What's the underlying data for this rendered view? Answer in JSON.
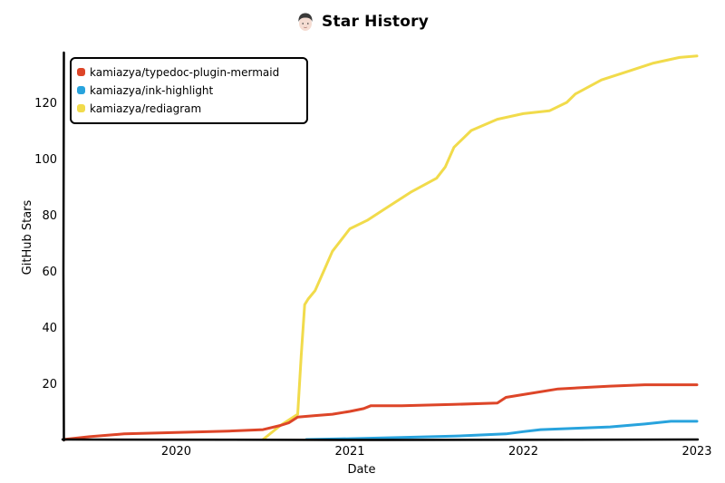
{
  "header": {
    "title": "Star History",
    "avatar_icon": "avatar-icon"
  },
  "chart_data": {
    "type": "line",
    "title": "Star History",
    "xlabel": "Date",
    "ylabel": "GitHub Stars",
    "x_ticks": [
      "2020",
      "2021",
      "2022",
      "2023"
    ],
    "y_ticks": [
      "20",
      "40",
      "60",
      "80",
      "100",
      "120"
    ],
    "xlim": [
      2019.35,
      2023.0
    ],
    "ylim": [
      0,
      137
    ],
    "grid": false,
    "legend_position": "top-left",
    "series": [
      {
        "name": "kamiazya/typedoc-plugin-mermaid",
        "color": "#dd4528",
        "x": [
          2019.35,
          2019.5,
          2019.7,
          2020.0,
          2020.3,
          2020.5,
          2020.6,
          2020.65,
          2020.7,
          2020.8,
          2020.9,
          2021.0,
          2021.08,
          2021.12,
          2021.3,
          2021.6,
          2021.85,
          2021.9,
          2022.0,
          2022.2,
          2022.35,
          2022.5,
          2022.7,
          2022.9,
          2023.0
        ],
        "y": [
          0,
          1,
          2,
          2.5,
          3,
          3.5,
          5,
          6,
          8,
          8.5,
          9,
          10,
          11,
          12,
          12,
          12.5,
          13,
          15,
          16,
          18,
          18.5,
          19,
          19.5,
          19.5,
          19.5
        ]
      },
      {
        "name": "kamiazya/ink-highlight",
        "color": "#28a3dd",
        "x": [
          2020.75,
          2021.0,
          2021.3,
          2021.6,
          2021.9,
          2022.0,
          2022.1,
          2022.3,
          2022.5,
          2022.7,
          2022.85,
          2023.0
        ],
        "y": [
          0,
          0.3,
          0.7,
          1.2,
          2,
          2.8,
          3.5,
          4,
          4.5,
          5.5,
          6.5,
          6.5
        ]
      },
      {
        "name": "kamiazya/rediagram",
        "color": "#f1db4b",
        "x": [
          2020.5,
          2020.6,
          2020.7,
          2020.72,
          2020.74,
          2020.76,
          2020.8,
          2020.85,
          2020.9,
          2021.0,
          2021.1,
          2021.2,
          2021.35,
          2021.5,
          2021.55,
          2021.6,
          2021.7,
          2021.85,
          2022.0,
          2022.15,
          2022.25,
          2022.3,
          2022.45,
          2022.6,
          2022.75,
          2022.9,
          2023.0
        ],
        "y": [
          0,
          5,
          9,
          30,
          48,
          50,
          53,
          60,
          67,
          75,
          78,
          82,
          88,
          93,
          97,
          104,
          110,
          114,
          116,
          117,
          120,
          123,
          128,
          131,
          134,
          136,
          136.5
        ]
      }
    ]
  }
}
